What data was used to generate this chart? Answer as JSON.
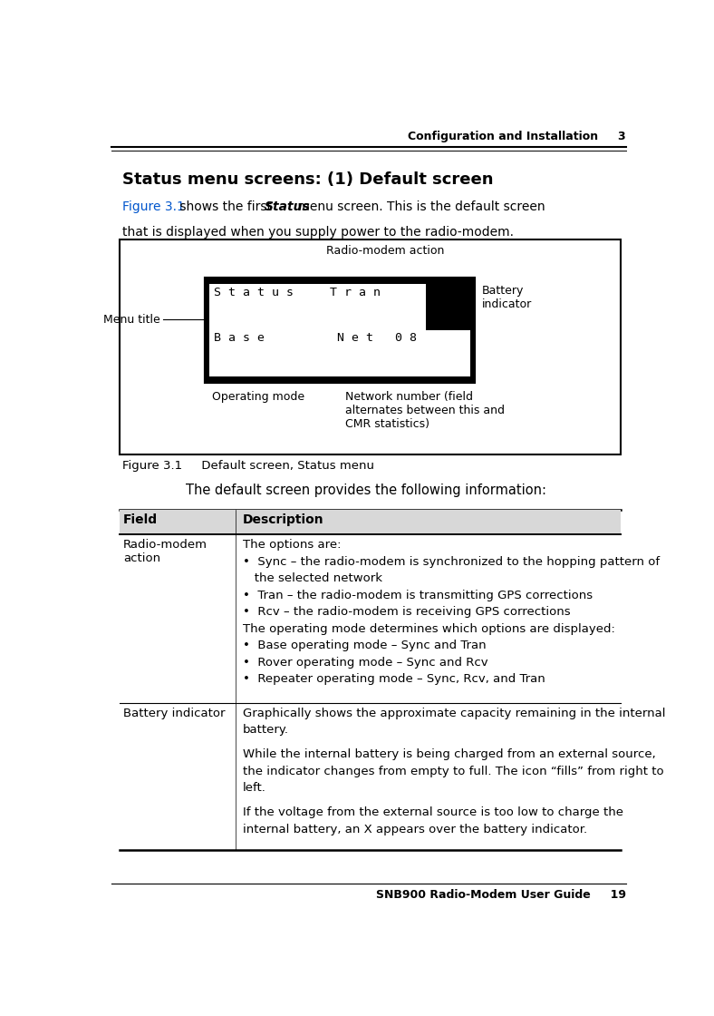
{
  "page_bg": "#ffffff",
  "header_text": "Configuration and Installation",
  "header_chapter": "3",
  "title": "Status menu screens: (1) Default screen",
  "intro_line2": "that is displayed when you supply power to the radio-modem.",
  "figure_caption": "Figure 3.1     Default screen, Status menu",
  "summary_text": "The default screen provides the following information:",
  "table_header_field": "Field",
  "table_header_desc": "Description",
  "row1_field": "Radio-modem\naction",
  "row1_desc_lines": [
    "The options are:",
    "•  Sync – the radio-modem is synchronized to the hopping pattern of",
    "   the selected network",
    "•  Tran – the radio-modem is transmitting GPS corrections",
    "•  Rcv – the radio-modem is receiving GPS corrections",
    "The operating mode determines which options are displayed:",
    "•  Base operating mode – Sync and Tran",
    "•  Rover operating mode – Sync and Rcv",
    "•  Repeater operating mode – Sync, Rcv, and Tran"
  ],
  "row2_field": "Battery indicator",
  "row2_desc_lines": [
    "Graphically shows the approximate capacity remaining in the internal",
    "battery.",
    "",
    "While the internal battery is being charged from an external source,",
    "the indicator changes from empty to full. The icon “fills” from right to",
    "left.",
    "",
    "If the voltage from the external source is too low to charge the",
    "internal battery, an X appears over the battery indicator."
  ],
  "footer_text": "SNB900 Radio-Modem User Guide",
  "footer_page": "19",
  "screen_text_row1": "S t a t u s     T r a n",
  "screen_text_row2": "B a s e          N e t   0 8",
  "label_menu_title": "Menu title",
  "label_radio_modem_action": "Radio-modem action",
  "label_operating_mode": "Operating mode",
  "label_network_number": "Network number (field\nalternates between this and\nCMR statistics)",
  "label_battery_indicator": "Battery\nindicator"
}
